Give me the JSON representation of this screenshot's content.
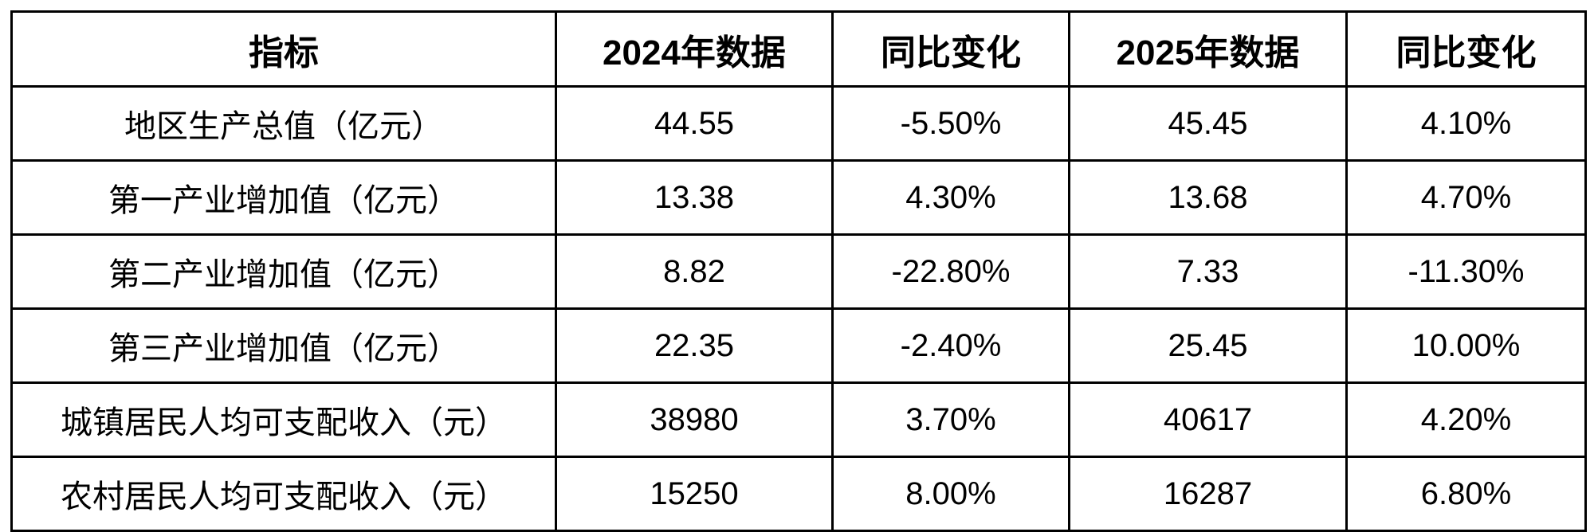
{
  "table": {
    "headers": [
      "指标",
      "2024年数据",
      "同比变化",
      "2025年数据",
      "同比变化"
    ],
    "rows": [
      [
        "地区生产总值（亿元）",
        "44.55",
        "-5.50%",
        "45.45",
        "4.10%"
      ],
      [
        "第一产业增加值（亿元）",
        "13.38",
        "4.30%",
        "13.68",
        "4.70%"
      ],
      [
        "第二产业增加值（亿元）",
        "8.82",
        "-22.80%",
        "7.33",
        "-11.30%"
      ],
      [
        "第三产业增加值（亿元）",
        "22.35",
        "-2.40%",
        "25.45",
        "10.00%"
      ],
      [
        "城镇居民人均可支配收入（元）",
        "38980",
        "3.70%",
        "40617",
        "4.20%"
      ],
      [
        "农村居民人均可支配收入（元）",
        "15250",
        "8.00%",
        "16287",
        "6.80%"
      ]
    ]
  },
  "chart_data": {
    "type": "table",
    "columns": [
      "指标",
      "2024年数据",
      "同比变化",
      "2025年数据",
      "同比变化"
    ],
    "rows": [
      [
        "地区生产总值（亿元）",
        44.55,
        "-5.50%",
        45.45,
        "4.10%"
      ],
      [
        "第一产业增加值（亿元）",
        13.38,
        "4.30%",
        13.68,
        "4.70%"
      ],
      [
        "第二产业增加值（亿元）",
        8.82,
        "-22.80%",
        7.33,
        "-11.30%"
      ],
      [
        "第三产业增加值（亿元）",
        22.35,
        "-2.40%",
        25.45,
        "10.00%"
      ],
      [
        "城镇居民人均可支配收入（元）",
        38980,
        "3.70%",
        40617,
        "4.20%"
      ],
      [
        "农村居民人均可支配收入（元）",
        15250,
        "8.00%",
        16287,
        "6.80%"
      ]
    ]
  },
  "colors": {
    "border": "#000000",
    "text": "#000000",
    "background": "#ffffff"
  }
}
